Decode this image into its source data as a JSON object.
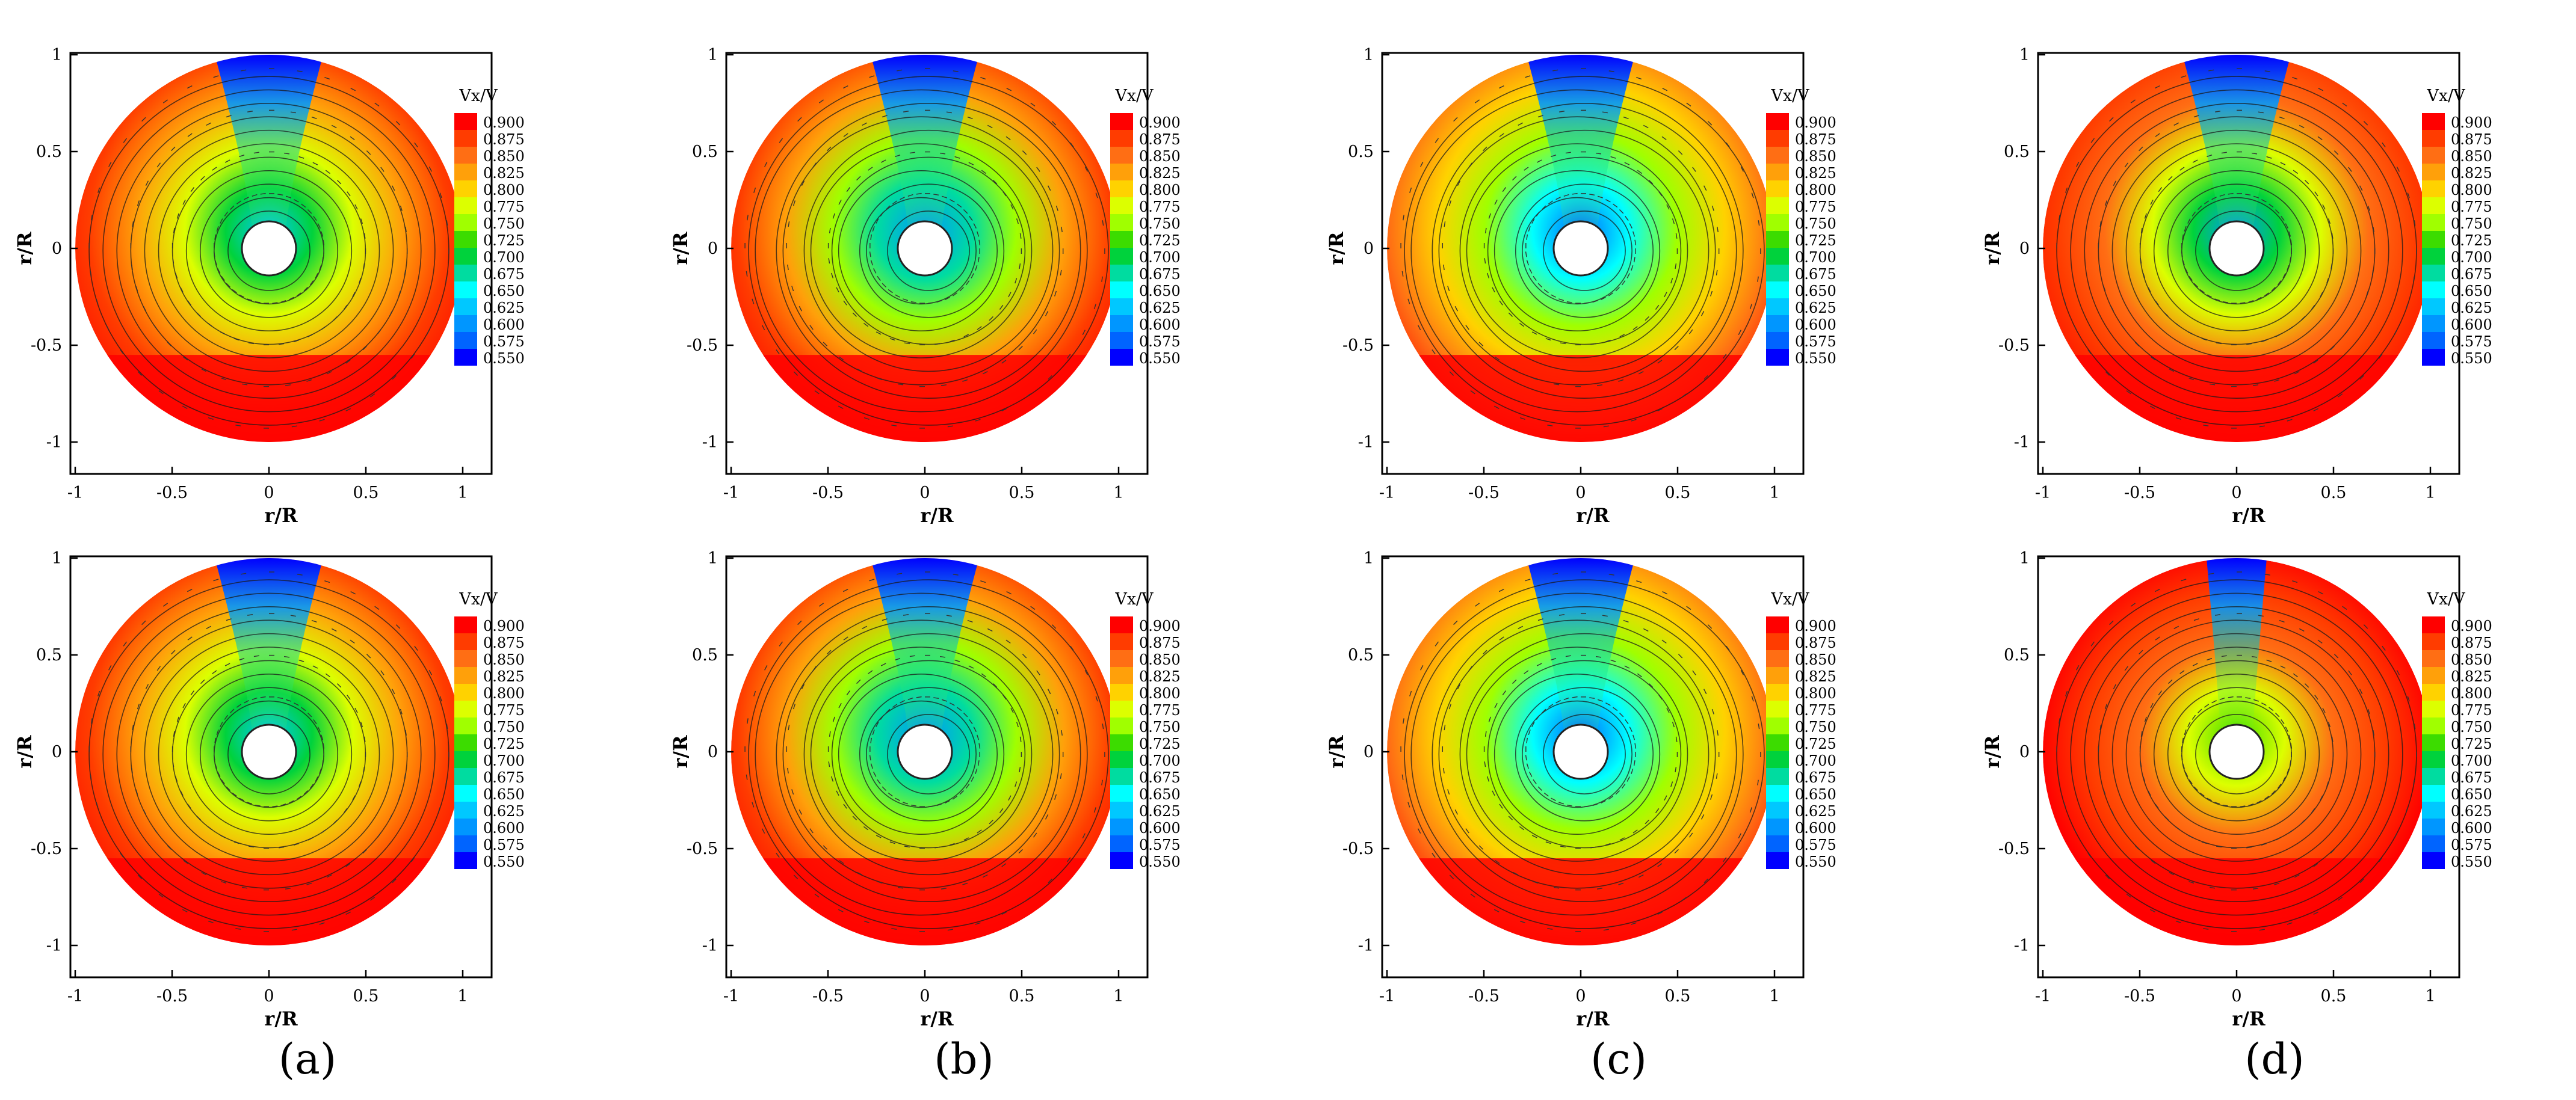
{
  "chart_data": {
    "type": "contour",
    "description_of_layout": "",
    "colorbar": {
      "title": "Vx/V",
      "ticks": [
        "0.900",
        "0.875",
        "0.850",
        "0.825",
        "0.800",
        "0.775",
        "0.750",
        "0.725",
        "0.700",
        "0.675",
        "0.650",
        "0.625",
        "0.600",
        "0.575",
        "0.550"
      ],
      "range": [
        0.55,
        0.9
      ],
      "colors": [
        "#ff0000",
        "#ff3c00",
        "#ff6e14",
        "#ffa00a",
        "#ffd200",
        "#dcff00",
        "#a0ff00",
        "#3cdc00",
        "#00d23c",
        "#00dca0",
        "#00ffff",
        "#00c8ff",
        "#0096ff",
        "#0064ff",
        "#0000ff"
      ]
    },
    "axes": {
      "xlabel": "r/R",
      "ylabel": "r/R",
      "xticks": [
        "-1",
        "-0.5",
        "0",
        "0.5",
        "1"
      ],
      "yticks": [
        "1",
        "0.5",
        "0",
        "-0.5",
        "-1"
      ],
      "xlim": [
        -1.1,
        1.1
      ],
      "ylim": [
        -1.1,
        1.1
      ]
    },
    "panels": [
      {
        "label": "(a)",
        "row": 1,
        "variant": "smooth"
      },
      {
        "label": "(b)",
        "row": 1,
        "variant": "disturbed"
      },
      {
        "label": "(c)",
        "row": 1,
        "variant": "strong"
      },
      {
        "label": "(d)",
        "row": 1,
        "variant": "smooth2"
      },
      {
        "label": "(a)",
        "row": 2,
        "variant": "smooth"
      },
      {
        "label": "(b)",
        "row": 2,
        "variant": "disturbed"
      },
      {
        "label": "(c)",
        "row": 2,
        "variant": "strong"
      },
      {
        "label": "(d)",
        "row": 2,
        "variant": "warm"
      }
    ],
    "column_labels": [
      "(a)",
      "(b)",
      "(c)",
      "(d)"
    ]
  }
}
